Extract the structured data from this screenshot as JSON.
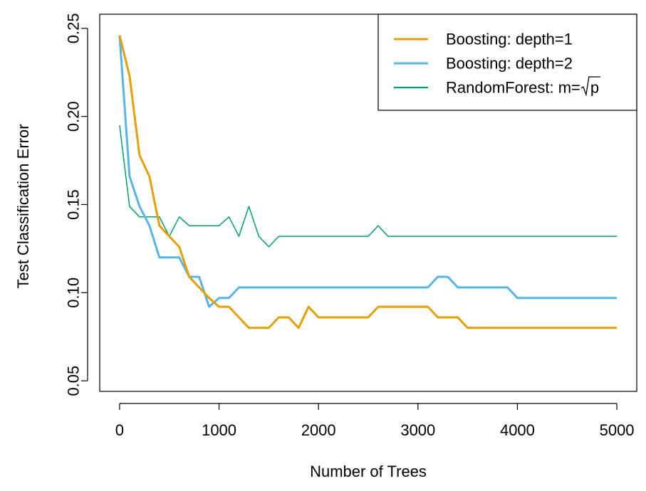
{
  "chart_data": {
    "type": "line",
    "title": "",
    "xlabel": "Number of Trees",
    "ylabel": "Test Classification Error",
    "xlim": [
      -200,
      5200
    ],
    "ylim": [
      0.044,
      0.258
    ],
    "xticks": [
      0,
      1000,
      2000,
      3000,
      4000,
      5000
    ],
    "xtick_labels": [
      "0",
      "1000",
      "2000",
      "3000",
      "4000",
      "5000"
    ],
    "yticks": [
      0.05,
      0.1,
      0.15,
      0.2,
      0.25
    ],
    "ytick_labels": [
      "0.05",
      "0.10",
      "0.15",
      "0.20",
      "0.25"
    ],
    "legend": {
      "position": "top-right"
    },
    "series": [
      {
        "name": "Boosting: depth=1",
        "color": "#E69F00",
        "width": "thick",
        "points": [
          [
            0,
            0.246
          ],
          [
            100,
            0.223
          ],
          [
            200,
            0.178
          ],
          [
            300,
            0.166
          ],
          [
            400,
            0.138
          ],
          [
            500,
            0.132
          ],
          [
            600,
            0.126
          ],
          [
            700,
            0.109
          ],
          [
            800,
            0.103
          ],
          [
            900,
            0.097
          ],
          [
            1000,
            0.092
          ],
          [
            1100,
            0.092
          ],
          [
            1200,
            0.086
          ],
          [
            1300,
            0.08
          ],
          [
            1400,
            0.08
          ],
          [
            1500,
            0.08
          ],
          [
            1600,
            0.086
          ],
          [
            1700,
            0.086
          ],
          [
            1800,
            0.08
          ],
          [
            1900,
            0.092
          ],
          [
            2000,
            0.086
          ],
          [
            2100,
            0.086
          ],
          [
            2200,
            0.086
          ],
          [
            2300,
            0.086
          ],
          [
            2400,
            0.086
          ],
          [
            2500,
            0.086
          ],
          [
            2600,
            0.092
          ],
          [
            2700,
            0.092
          ],
          [
            2800,
            0.092
          ],
          [
            2900,
            0.092
          ],
          [
            3000,
            0.092
          ],
          [
            3100,
            0.092
          ],
          [
            3200,
            0.086
          ],
          [
            3300,
            0.086
          ],
          [
            3400,
            0.086
          ],
          [
            3500,
            0.08
          ],
          [
            3600,
            0.08
          ],
          [
            3700,
            0.08
          ],
          [
            3800,
            0.08
          ],
          [
            3900,
            0.08
          ],
          [
            4000,
            0.08
          ],
          [
            4100,
            0.08
          ],
          [
            4200,
            0.08
          ],
          [
            4300,
            0.08
          ],
          [
            4400,
            0.08
          ],
          [
            4500,
            0.08
          ],
          [
            4600,
            0.08
          ],
          [
            4700,
            0.08
          ],
          [
            4800,
            0.08
          ],
          [
            4900,
            0.08
          ],
          [
            5000,
            0.08
          ]
        ]
      },
      {
        "name": "Boosting: depth=2",
        "color": "#56B4E9",
        "width": "thick",
        "points": [
          [
            0,
            0.246
          ],
          [
            100,
            0.166
          ],
          [
            200,
            0.149
          ],
          [
            300,
            0.138
          ],
          [
            400,
            0.12
          ],
          [
            500,
            0.12
          ],
          [
            600,
            0.12
          ],
          [
            700,
            0.109
          ],
          [
            800,
            0.109
          ],
          [
            900,
            0.092
          ],
          [
            1000,
            0.097
          ],
          [
            1100,
            0.097
          ],
          [
            1200,
            0.103
          ],
          [
            1300,
            0.103
          ],
          [
            1400,
            0.103
          ],
          [
            1500,
            0.103
          ],
          [
            1600,
            0.103
          ],
          [
            1700,
            0.103
          ],
          [
            1800,
            0.103
          ],
          [
            1900,
            0.103
          ],
          [
            2000,
            0.103
          ],
          [
            2100,
            0.103
          ],
          [
            2200,
            0.103
          ],
          [
            2300,
            0.103
          ],
          [
            2400,
            0.103
          ],
          [
            2500,
            0.103
          ],
          [
            2600,
            0.103
          ],
          [
            2700,
            0.103
          ],
          [
            2800,
            0.103
          ],
          [
            2900,
            0.103
          ],
          [
            3000,
            0.103
          ],
          [
            3100,
            0.103
          ],
          [
            3200,
            0.109
          ],
          [
            3300,
            0.109
          ],
          [
            3400,
            0.103
          ],
          [
            3500,
            0.103
          ],
          [
            3600,
            0.103
          ],
          [
            3700,
            0.103
          ],
          [
            3800,
            0.103
          ],
          [
            3900,
            0.103
          ],
          [
            4000,
            0.097
          ],
          [
            4100,
            0.097
          ],
          [
            4200,
            0.097
          ],
          [
            4300,
            0.097
          ],
          [
            4400,
            0.097
          ],
          [
            4500,
            0.097
          ],
          [
            4600,
            0.097
          ],
          [
            4700,
            0.097
          ],
          [
            4800,
            0.097
          ],
          [
            4900,
            0.097
          ],
          [
            5000,
            0.097
          ]
        ]
      },
      {
        "name": "RandomForest: m=√p",
        "legend_prefix": "RandomForest: m=",
        "legend_radicand": "p",
        "color": "#009E73",
        "width": "thin",
        "points": [
          [
            0,
            0.195
          ],
          [
            100,
            0.149
          ],
          [
            200,
            0.143
          ],
          [
            300,
            0.143
          ],
          [
            400,
            0.143
          ],
          [
            500,
            0.132
          ],
          [
            600,
            0.143
          ],
          [
            700,
            0.138
          ],
          [
            800,
            0.138
          ],
          [
            900,
            0.138
          ],
          [
            1000,
            0.138
          ],
          [
            1100,
            0.143
          ],
          [
            1200,
            0.132
          ],
          [
            1300,
            0.149
          ],
          [
            1400,
            0.132
          ],
          [
            1500,
            0.126
          ],
          [
            1600,
            0.132
          ],
          [
            1700,
            0.132
          ],
          [
            1800,
            0.132
          ],
          [
            1900,
            0.132
          ],
          [
            2000,
            0.132
          ],
          [
            2100,
            0.132
          ],
          [
            2200,
            0.132
          ],
          [
            2300,
            0.132
          ],
          [
            2400,
            0.132
          ],
          [
            2500,
            0.132
          ],
          [
            2600,
            0.138
          ],
          [
            2700,
            0.132
          ],
          [
            2800,
            0.132
          ],
          [
            2900,
            0.132
          ],
          [
            3000,
            0.132
          ],
          [
            3100,
            0.132
          ],
          [
            3200,
            0.132
          ],
          [
            3300,
            0.132
          ],
          [
            3400,
            0.132
          ],
          [
            3500,
            0.132
          ],
          [
            3600,
            0.132
          ],
          [
            3700,
            0.132
          ],
          [
            3800,
            0.132
          ],
          [
            3900,
            0.132
          ],
          [
            4000,
            0.132
          ],
          [
            4100,
            0.132
          ],
          [
            4200,
            0.132
          ],
          [
            4300,
            0.132
          ],
          [
            4400,
            0.132
          ],
          [
            4500,
            0.132
          ],
          [
            4600,
            0.132
          ],
          [
            4700,
            0.132
          ],
          [
            4800,
            0.132
          ],
          [
            4900,
            0.132
          ],
          [
            5000,
            0.132
          ]
        ]
      }
    ]
  }
}
